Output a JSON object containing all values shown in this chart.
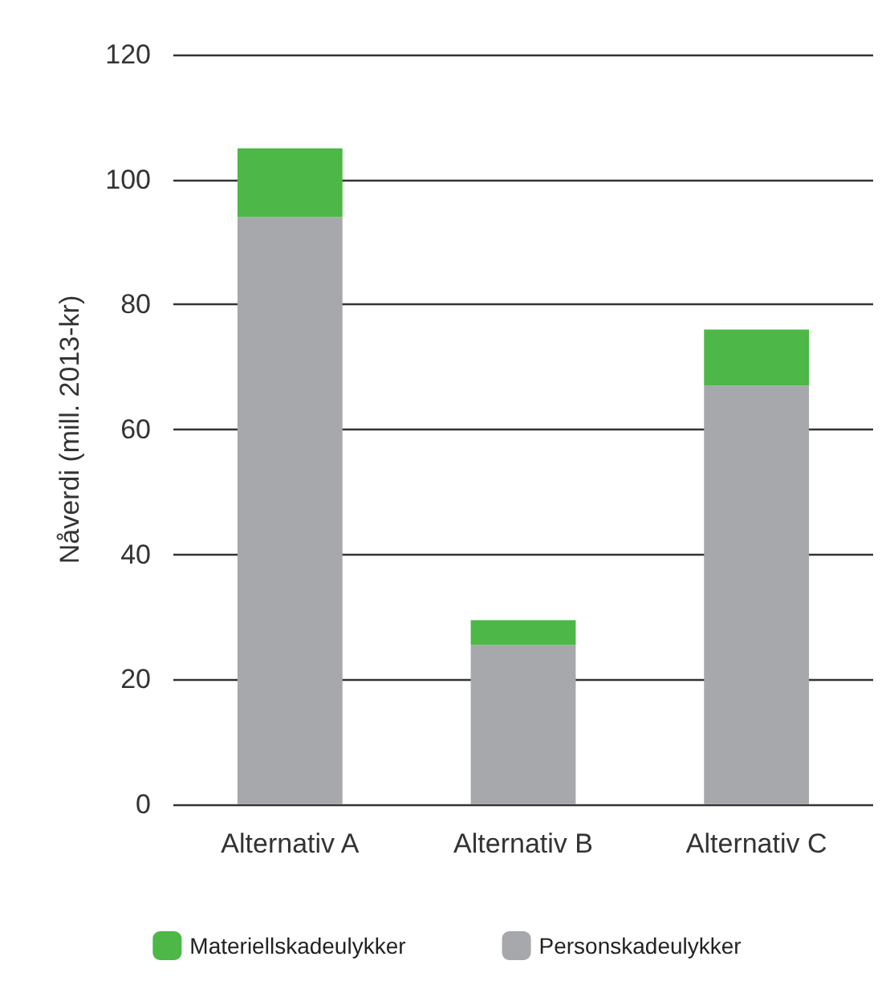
{
  "chart_data": {
    "type": "bar",
    "stacked": true,
    "ylabel": "Nåverdi (mill. 2013-kr)",
    "categories": [
      "Alternativ A",
      "Alternativ B",
      "Alternativ C"
    ],
    "series": [
      {
        "name": "Personskadeulykker",
        "color": "#a7a8ab",
        "values": [
          94,
          25.5,
          67
        ]
      },
      {
        "name": "Materiellskadeulykker",
        "color": "#4db748",
        "values": [
          11,
          4,
          9
        ]
      }
    ],
    "ylim": [
      0,
      120
    ],
    "yticks": [
      0,
      20,
      40,
      60,
      80,
      100,
      120
    ],
    "grid": "y",
    "legend": "bottom"
  }
}
